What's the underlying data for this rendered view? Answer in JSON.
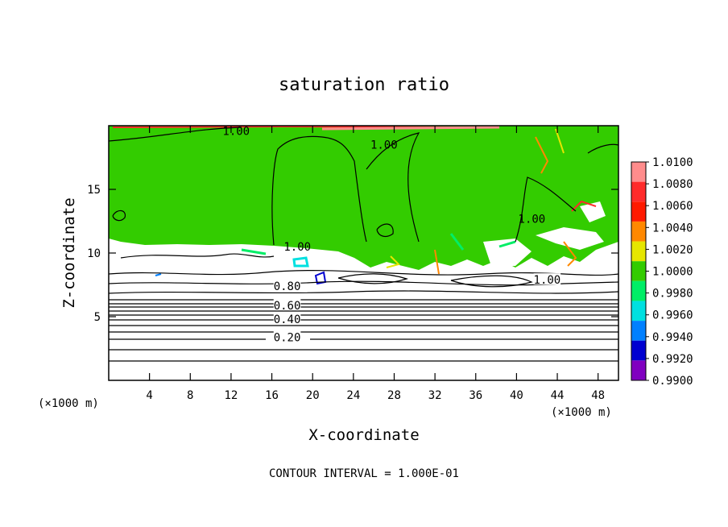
{
  "chart_data": {
    "type": "heatmap",
    "title": "saturation ratio",
    "xlabel": "X-coordinate",
    "ylabel": "Z-coordinate",
    "x_unit_left": "(×1000 m)",
    "x_unit_right": "(×1000 m)",
    "xlim": [
      0,
      50
    ],
    "ylim": [
      0,
      20
    ],
    "x_ticks": [
      4,
      8,
      12,
      16,
      20,
      24,
      28,
      32,
      36,
      40,
      44,
      48
    ],
    "y_ticks": [
      5,
      10,
      15
    ],
    "footer": "CONTOUR INTERVAL = 1.000E-01",
    "colorbar": {
      "labels": [
        "1.0100",
        "1.0080",
        "1.0060",
        "1.0040",
        "1.0020",
        "1.0000",
        "0.9980",
        "0.9960",
        "0.9940",
        "0.9920",
        "0.9900"
      ],
      "colors": [
        "#ff8c8c",
        "#ff2b2b",
        "#ff1a00",
        "#ff8800",
        "#e6e600",
        "#33cc00",
        "#00ee66",
        "#00e0e0",
        "#0080ff",
        "#0000d0",
        "#8000c0"
      ]
    },
    "contour_labels": [
      {
        "text": "1.00",
        "x": 12.5,
        "z": 19.6
      },
      {
        "text": "1.00",
        "x": 27,
        "z": 18.5
      },
      {
        "text": "1.00",
        "x": 41.5,
        "z": 12.7
      },
      {
        "text": "1.00",
        "x": 18.5,
        "z": 10.5
      },
      {
        "text": "1.00",
        "x": 43,
        "z": 7.9
      },
      {
        "text": "0.80",
        "x": 17.5,
        "z": 7.4
      },
      {
        "text": "0.60",
        "x": 17.5,
        "z": 5.9
      },
      {
        "text": "0.40",
        "x": 17.5,
        "z": 4.8
      },
      {
        "text": "0.20",
        "x": 17.5,
        "z": 3.4
      }
    ]
  }
}
